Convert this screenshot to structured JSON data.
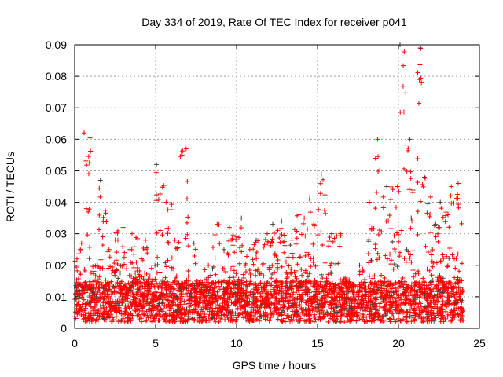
{
  "chart_data": {
    "type": "scatter",
    "title": "Day 334 of 2019, Rate Of TEC Index for receiver p041",
    "xlabel": "GPS time / hours",
    "ylabel": "ROTI / TECUs",
    "xlim": [
      0,
      25
    ],
    "ylim": [
      0,
      0.09
    ],
    "xticks": [
      "0",
      "5",
      "10",
      "15",
      "20",
      "25"
    ],
    "yticks": [
      "0",
      "0.01",
      "0.02",
      "0.03",
      "0.04",
      "0.05",
      "0.06",
      "0.07",
      "0.08",
      "0.09"
    ],
    "grid": true,
    "marker": "+",
    "series_colors": {
      "main": "#ff0000",
      "secondary": "#404040"
    },
    "bin_width_hours": 0.5,
    "typical_range": [
      0.002,
      0.015
    ],
    "max_per_bin": [
      0.027,
      0.062,
      0.02,
      0.047,
      0.025,
      0.032,
      0.025,
      0.03,
      0.028,
      0.02,
      0.052,
      0.04,
      0.028,
      0.057,
      0.027,
      0.015,
      0.02,
      0.033,
      0.025,
      0.032,
      0.035,
      0.025,
      0.028,
      0.03,
      0.033,
      0.034,
      0.028,
      0.036,
      0.035,
      0.042,
      0.049,
      0.03,
      0.03,
      0.016,
      0.014,
      0.02,
      0.04,
      0.06,
      0.045,
      0.045,
      0.09,
      0.06,
      0.089,
      0.048,
      0.033,
      0.04,
      0.045,
      0.046
    ]
  }
}
